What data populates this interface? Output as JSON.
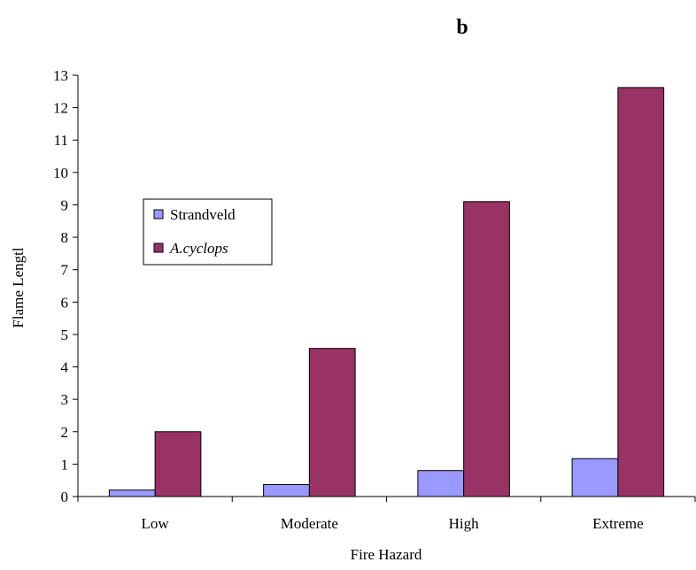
{
  "chart_data": {
    "type": "bar",
    "title": "b",
    "xlabel": "Fire Hazard",
    "ylabel": "Flame Lengtl",
    "categories": [
      "Low",
      "Moderate",
      "High",
      "Extreme"
    ],
    "series": [
      {
        "name": "Strandveld",
        "values": [
          0.2,
          0.37,
          0.8,
          1.17
        ],
        "color": "#9999ff"
      },
      {
        "name": "A.cyclops",
        "values": [
          2.0,
          4.57,
          9.1,
          12.62
        ],
        "color": "#993366"
      }
    ],
    "ylim": [
      0,
      13
    ],
    "yticks": [
      "0",
      "1",
      "2",
      "3",
      "4",
      "5",
      "6",
      "7",
      "8",
      "9",
      "10",
      "11",
      "12",
      "13"
    ],
    "grid": false,
    "legend_position": "left"
  }
}
